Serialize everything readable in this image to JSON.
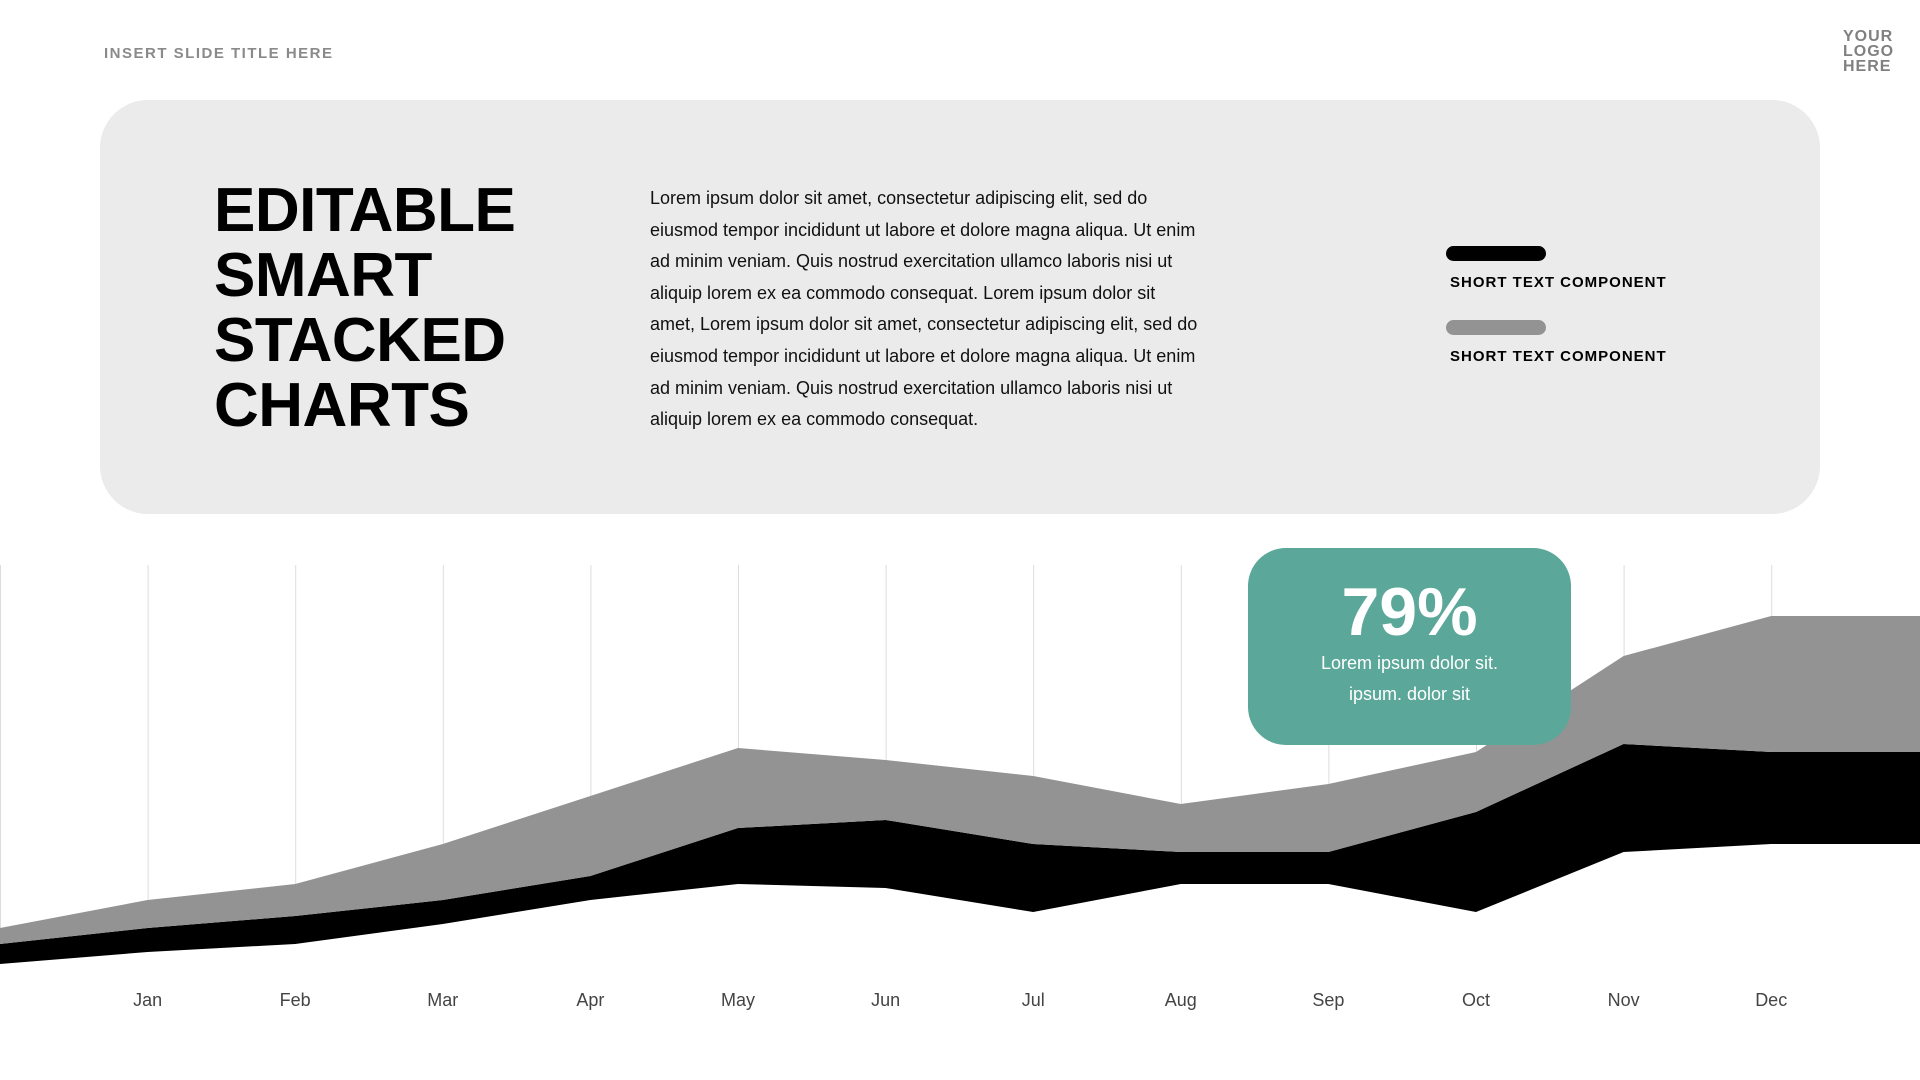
{
  "header": {
    "slide_title": "INSERT SLIDE TITLE HERE",
    "logo_lines": [
      "YOUR",
      "LOGO",
      "HERE"
    ]
  },
  "panel": {
    "headline_lines": [
      "EDITABLE",
      "SMART",
      "STACKED",
      "CHARTS"
    ],
    "paragraph_lines": [
      "Lorem ipsum dolor sit amet, consectetur adipiscing elit, sed do",
      "eiusmod tempor incididunt ut labore et dolore magna aliqua. Ut enim",
      "ad minim veniam.  Quis nostrud exercitation ullamco laboris nisi ut",
      "aliquip lorem ex ea commodo consequat. Lorem ipsum dolor sit",
      "amet, Lorem ipsum dolor sit amet, consectetur adipiscing elit, sed do",
      "eiusmod tempor incididunt ut labore et dolore magna aliqua. Ut enim",
      "ad minim veniam.  Quis nostrud exercitation ullamco laboris nisi ut",
      "aliquip lorem ex ea commodo consequat."
    ],
    "legend": [
      {
        "label": "SHORT TEXT COMPONENT",
        "color": "#000000"
      },
      {
        "label": "SHORT TEXT COMPONENT",
        "color": "#939393"
      }
    ]
  },
  "callout": {
    "value": "79%",
    "lines": [
      "Lorem ipsum dolor sit.",
      "ipsum. dolor sit"
    ],
    "color": "#5ba79a"
  },
  "chart_data": {
    "type": "area",
    "stacked": true,
    "categories": [
      "",
      "Jan",
      "Feb",
      "Mar",
      "Apr",
      "May",
      "Jun",
      "Jul",
      "Aug",
      "Sep",
      "Oct",
      "Nov",
      "Dec",
      ""
    ],
    "series": [
      {
        "color": "#ffffff",
        "values": [
          9,
          12,
          14,
          19,
          25,
          29,
          28,
          22,
          29,
          29,
          22,
          37,
          39,
          39
        ]
      },
      {
        "color": "#000000",
        "values": [
          5,
          6,
          7,
          6,
          6,
          14,
          17,
          17,
          8,
          8,
          25,
          27,
          23,
          23
        ]
      },
      {
        "color": "#939393",
        "values": [
          4,
          7,
          8,
          14,
          20,
          20,
          15,
          17,
          12,
          17,
          15,
          22,
          34,
          34
        ]
      }
    ],
    "ylim": [
      0,
      110
    ],
    "grid": "vertical",
    "gridline_color": "#dddddd"
  }
}
